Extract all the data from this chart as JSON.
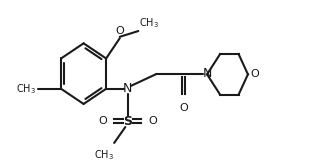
{
  "bg_color": "#ffffff",
  "line_color": "#1a1a1a",
  "line_width": 1.5,
  "font_size_atoms": 8,
  "figsize": [
    3.22,
    1.64
  ],
  "dpi": 100,
  "xlim": [
    0.0,
    5.2
  ],
  "ylim": [
    0.0,
    2.2
  ]
}
